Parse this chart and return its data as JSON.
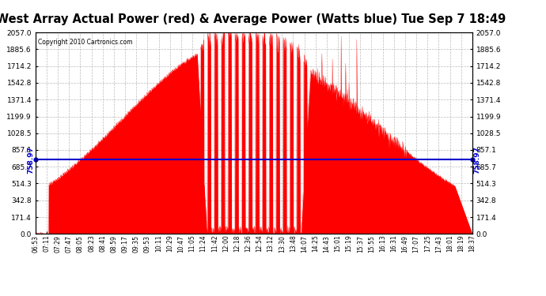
{
  "title": "West Array Actual Power (red) & Average Power (Watts blue) Tue Sep 7 18:49",
  "copyright": "Copyright 2010 Cartronics.com",
  "average_power": 758.97,
  "y_max": 2057.0,
  "y_min": 0.0,
  "y_ticks": [
    0.0,
    171.4,
    342.8,
    514.3,
    685.7,
    857.1,
    1028.5,
    1199.9,
    1371.4,
    1542.8,
    1714.2,
    1885.6,
    2057.0
  ],
  "background_color": "#ffffff",
  "plot_bg_color": "#ffffff",
  "grid_color": "#aaaaaa",
  "fill_color": "#ff0000",
  "line_color": "#ff0000",
  "avg_line_color": "#0000cc",
  "title_color": "#000000",
  "title_fontsize": 10.5,
  "avg_label": "758.97",
  "x_tick_labels": [
    "06:53",
    "07:11",
    "07:29",
    "07:47",
    "08:05",
    "08:23",
    "08:41",
    "08:59",
    "09:17",
    "09:35",
    "09:53",
    "10:11",
    "10:29",
    "10:47",
    "11:05",
    "11:24",
    "11:42",
    "12:00",
    "12:18",
    "12:36",
    "12:54",
    "13:12",
    "13:30",
    "13:48",
    "14:07",
    "14:25",
    "14:43",
    "15:01",
    "15:19",
    "15:37",
    "15:55",
    "16:13",
    "16:31",
    "16:49",
    "17:07",
    "17:25",
    "17:43",
    "18:01",
    "18:19",
    "18:37"
  ]
}
